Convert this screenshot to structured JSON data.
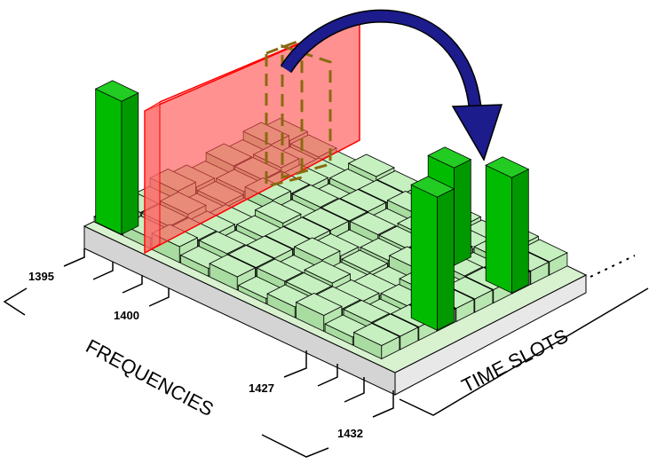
{
  "labels": {
    "freq_1395": "1395",
    "freq_1400": "1400",
    "freq_1427": "1427",
    "freq_1432": "1432",
    "frequencies_axis": "FREQUENCIES",
    "time_slots_axis": "TIME SLOTS"
  },
  "colors": {
    "platform_top": "#c8e6c0",
    "platform_side": "#d4d4d4",
    "cell_top": "#c6f0c0",
    "cell_left": "#a8dca0",
    "cell_right": "#b8e6b0",
    "green_bar_front": "#00bb00",
    "green_bar_side": "#009900",
    "green_bar_top": "#22cc22",
    "red_plane": "#ff5555",
    "red_plane_stroke": "#ff0000",
    "selection_dash": "#8a6a10",
    "arrow": "#1c1c8c"
  },
  "icons": {
    "arrow": "curved-arrow-icon"
  }
}
